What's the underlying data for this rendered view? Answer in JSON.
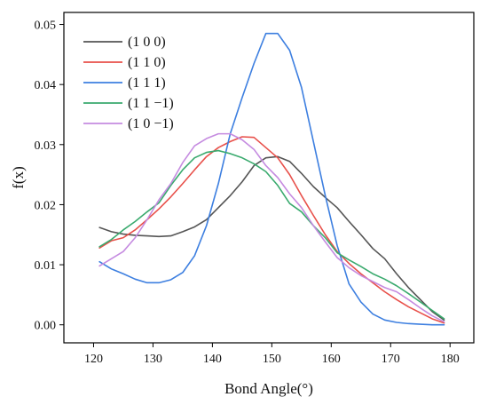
{
  "chart_data": {
    "type": "line",
    "title": "",
    "xlabel": "Bond Angle(°)",
    "ylabel": "f(x)",
    "xlim": [
      115,
      184
    ],
    "ylim": [
      -0.003,
      0.052
    ],
    "xticks": [
      120,
      130,
      140,
      150,
      160,
      170,
      180
    ],
    "yticks": [
      0.0,
      0.01,
      0.02,
      0.03,
      0.04,
      0.05
    ],
    "xtick_labels": [
      "120",
      "130",
      "140",
      "150",
      "160",
      "170",
      "180"
    ],
    "ytick_labels": [
      "0.00",
      "0.01",
      "0.02",
      "0.03",
      "0.04",
      "0.05"
    ],
    "grid": false,
    "legend": "top-left",
    "series": [
      {
        "name": "(1 0 0)",
        "color": "#555555",
        "x": [
          121,
          123,
          125,
          127,
          129,
          131,
          133,
          135,
          137,
          139,
          141,
          143,
          145,
          147,
          149,
          151,
          153,
          155,
          157,
          159,
          161,
          163,
          165,
          167,
          169,
          171,
          173,
          175,
          177,
          179
        ],
        "y": [
          0.0162,
          0.0155,
          0.0151,
          0.0149,
          0.0148,
          0.0147,
          0.0148,
          0.0155,
          0.0163,
          0.0175,
          0.0195,
          0.0215,
          0.0238,
          0.0265,
          0.0278,
          0.028,
          0.0272,
          0.0252,
          0.023,
          0.0212,
          0.0195,
          0.0172,
          0.015,
          0.0127,
          0.011,
          0.0085,
          0.0062,
          0.0042,
          0.0022,
          0.0008
        ]
      },
      {
        "name": "(1 1 0)",
        "color": "#e8504a",
        "x": [
          121,
          123,
          125,
          127,
          129,
          131,
          133,
          135,
          137,
          139,
          141,
          143,
          145,
          147,
          149,
          151,
          153,
          155,
          157,
          159,
          161,
          163,
          165,
          167,
          169,
          171,
          173,
          175,
          177,
          179
        ],
        "y": [
          0.0128,
          0.014,
          0.0145,
          0.0158,
          0.0175,
          0.0193,
          0.0213,
          0.0235,
          0.0258,
          0.028,
          0.0295,
          0.0305,
          0.0313,
          0.0312,
          0.0295,
          0.0278,
          0.025,
          0.0215,
          0.0182,
          0.015,
          0.0122,
          0.0102,
          0.0085,
          0.007,
          0.0055,
          0.0042,
          0.003,
          0.002,
          0.001,
          0.0003
        ]
      },
      {
        "name": "(1 1 1)",
        "color": "#3d7fe0",
        "x": [
          121,
          123,
          125,
          127,
          129,
          131,
          133,
          135,
          137,
          139,
          141,
          143,
          145,
          147,
          149,
          151,
          153,
          155,
          157,
          159,
          161,
          163,
          165,
          167,
          169,
          171,
          173,
          175,
          177,
          179
        ],
        "y": [
          0.0105,
          0.0093,
          0.0085,
          0.0076,
          0.007,
          0.007,
          0.0075,
          0.0087,
          0.0115,
          0.0165,
          0.0235,
          0.0318,
          0.0378,
          0.0435,
          0.0485,
          0.0485,
          0.0457,
          0.0395,
          0.0305,
          0.0215,
          0.0132,
          0.0068,
          0.0038,
          0.0018,
          0.0008,
          0.0004,
          0.0002,
          0.0001,
          0.0,
          0.0
        ]
      },
      {
        "name": "(1 1 −1)",
        "color": "#3aaa6e",
        "x": [
          121,
          123,
          125,
          127,
          129,
          131,
          133,
          135,
          137,
          139,
          141,
          143,
          145,
          147,
          149,
          151,
          153,
          155,
          157,
          159,
          161,
          163,
          165,
          167,
          169,
          171,
          173,
          175,
          177,
          179
        ],
        "y": [
          0.013,
          0.0142,
          0.0158,
          0.0172,
          0.0188,
          0.0203,
          0.0232,
          0.0258,
          0.0278,
          0.0287,
          0.029,
          0.0285,
          0.0278,
          0.0268,
          0.0255,
          0.0232,
          0.0202,
          0.0188,
          0.0165,
          0.0145,
          0.012,
          0.0108,
          0.0097,
          0.0085,
          0.0076,
          0.0065,
          0.0052,
          0.0038,
          0.0024,
          0.001
        ]
      },
      {
        "name": "(1 0 −1)",
        "color": "#c58be0",
        "x": [
          121,
          123,
          125,
          127,
          129,
          131,
          133,
          135,
          137,
          139,
          141,
          143,
          145,
          147,
          149,
          151,
          153,
          155,
          157,
          159,
          161,
          163,
          165,
          167,
          169,
          171,
          173,
          175,
          177,
          179
        ],
        "y": [
          0.0098,
          0.011,
          0.0122,
          0.0145,
          0.0175,
          0.0208,
          0.0235,
          0.027,
          0.0298,
          0.031,
          0.0318,
          0.0318,
          0.0308,
          0.0292,
          0.0265,
          0.0245,
          0.0218,
          0.0195,
          0.0165,
          0.0138,
          0.0112,
          0.0095,
          0.0082,
          0.0072,
          0.0062,
          0.0055,
          0.0042,
          0.0028,
          0.0015,
          0.0005
        ]
      }
    ]
  }
}
